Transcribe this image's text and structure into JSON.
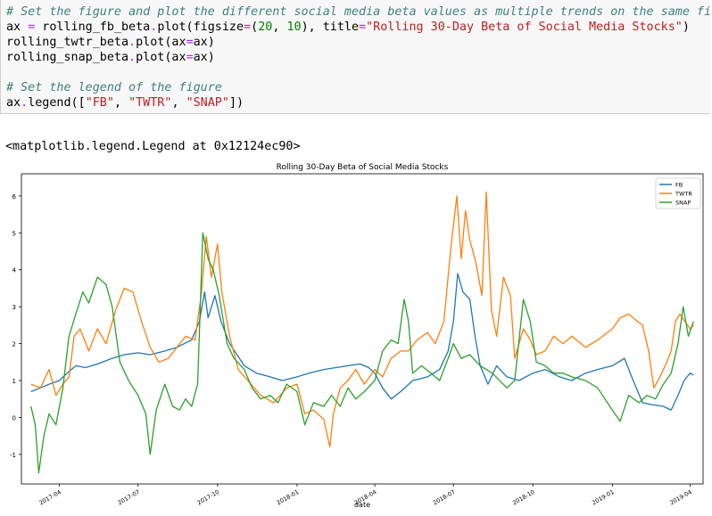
{
  "code_cell": {
    "line1": "# Set the figure and plot the different social media beta values as multiple trends on the same figur",
    "line2": {
      "a": "ax ",
      "b": "=",
      "c": " rolling_fb_beta",
      "d": ".",
      "e": "plot(figsize",
      "f": "=",
      "g": "(",
      "h": "20",
      "i": ", ",
      "j": "10",
      "k": "), title",
      "l": "=",
      "m": "\"Rolling 30-Day Beta of Social Media Stocks\"",
      "n": ")"
    },
    "line3": {
      "a": "rolling_twtr_beta",
      "b": ".",
      "c": "plot(ax",
      "d": "=",
      "e": "ax)"
    },
    "line4": {
      "a": "rolling_snap_beta",
      "b": ".",
      "c": "plot(ax",
      "d": "=",
      "e": "ax)"
    },
    "line6": "# Set the legend of the figure",
    "line7": {
      "a": "ax",
      "b": ".",
      "c": "legend([",
      "d": "\"FB\"",
      "e": ", ",
      "f": "\"TWTR\"",
      "g": ", ",
      "h": "\"SNAP\"",
      "i": "])"
    }
  },
  "output_text": "<matplotlib.legend.Legend at 0x12124ec90>",
  "chart_data": {
    "type": "line",
    "title": "Rolling 30-Day Beta of Social Media Stocks",
    "xlabel": "date",
    "ylabel": "",
    "ylim": [
      -1.8,
      6.6
    ],
    "yticks": [
      -1,
      0,
      1,
      2,
      3,
      4,
      5,
      6
    ],
    "xlim": [
      "2017-02-16",
      "2019-04-16"
    ],
    "xticks": [
      {
        "date": "2017-04-01",
        "label": "2017-04"
      },
      {
        "date": "2017-07-01",
        "label": "2017-07"
      },
      {
        "date": "2017-10-01",
        "label": "2017-10"
      },
      {
        "date": "2018-01-01",
        "label": "2018-01"
      },
      {
        "date": "2018-04-01",
        "label": "2018-04"
      },
      {
        "date": "2018-07-01",
        "label": "2018-07"
      },
      {
        "date": "2018-10-01",
        "label": "2018-10"
      },
      {
        "date": "2019-01-01",
        "label": "2019-01"
      },
      {
        "date": "2019-04-01",
        "label": "2019-04"
      }
    ],
    "legend": "top-right",
    "grid": false,
    "series": [
      {
        "name": "FB",
        "color": "#1f77b4",
        "points": [
          [
            "2017-02-27",
            0.7
          ],
          [
            "2017-03-10",
            0.8
          ],
          [
            "2017-03-20",
            0.9
          ],
          [
            "2017-04-01",
            1.0
          ],
          [
            "2017-04-10",
            1.2
          ],
          [
            "2017-04-20",
            1.4
          ],
          [
            "2017-05-01",
            1.35
          ],
          [
            "2017-05-15",
            1.45
          ],
          [
            "2017-06-01",
            1.6
          ],
          [
            "2017-06-15",
            1.7
          ],
          [
            "2017-07-01",
            1.75
          ],
          [
            "2017-07-15",
            1.7
          ],
          [
            "2017-08-01",
            1.8
          ],
          [
            "2017-08-15",
            1.9
          ],
          [
            "2017-09-01",
            2.1
          ],
          [
            "2017-09-10",
            2.6
          ],
          [
            "2017-09-16",
            3.4
          ],
          [
            "2017-09-20",
            2.7
          ],
          [
            "2017-09-28",
            3.3
          ],
          [
            "2017-10-05",
            2.6
          ],
          [
            "2017-10-15",
            2.0
          ],
          [
            "2017-11-01",
            1.4
          ],
          [
            "2017-11-15",
            1.2
          ],
          [
            "2017-12-01",
            1.1
          ],
          [
            "2017-12-15",
            1.0
          ],
          [
            "2018-01-01",
            1.1
          ],
          [
            "2018-01-15",
            1.2
          ],
          [
            "2018-02-01",
            1.3
          ],
          [
            "2018-02-15",
            1.35
          ],
          [
            "2018-03-01",
            1.4
          ],
          [
            "2018-03-15",
            1.45
          ],
          [
            "2018-03-25",
            1.35
          ],
          [
            "2018-04-01",
            1.2
          ],
          [
            "2018-04-10",
            0.8
          ],
          [
            "2018-04-20",
            0.5
          ],
          [
            "2018-05-01",
            0.7
          ],
          [
            "2018-05-15",
            1.0
          ],
          [
            "2018-06-01",
            1.1
          ],
          [
            "2018-06-15",
            1.3
          ],
          [
            "2018-06-25",
            1.8
          ],
          [
            "2018-07-01",
            2.6
          ],
          [
            "2018-07-06",
            3.9
          ],
          [
            "2018-07-12",
            3.4
          ],
          [
            "2018-07-20",
            3.2
          ],
          [
            "2018-07-26",
            2.2
          ],
          [
            "2018-08-01",
            1.4
          ],
          [
            "2018-08-10",
            0.9
          ],
          [
            "2018-08-20",
            1.4
          ],
          [
            "2018-09-01",
            1.1
          ],
          [
            "2018-09-15",
            1.0
          ],
          [
            "2018-10-01",
            1.2
          ],
          [
            "2018-10-15",
            1.3
          ],
          [
            "2018-11-01",
            1.1
          ],
          [
            "2018-11-15",
            1.0
          ],
          [
            "2018-12-01",
            1.2
          ],
          [
            "2018-12-15",
            1.3
          ],
          [
            "2019-01-01",
            1.4
          ],
          [
            "2019-01-15",
            1.6
          ],
          [
            "2019-01-25",
            1.0
          ],
          [
            "2019-02-05",
            0.4
          ],
          [
            "2019-02-15",
            0.35
          ],
          [
            "2019-03-01",
            0.3
          ],
          [
            "2019-03-10",
            0.2
          ],
          [
            "2019-03-18",
            0.6
          ],
          [
            "2019-03-25",
            1.0
          ],
          [
            "2019-04-01",
            1.2
          ],
          [
            "2019-04-05",
            1.15
          ]
        ]
      },
      {
        "name": "TWTR",
        "color": "#ff7f0e",
        "points": [
          [
            "2017-02-27",
            0.9
          ],
          [
            "2017-03-10",
            0.8
          ],
          [
            "2017-03-20",
            1.3
          ],
          [
            "2017-03-28",
            0.6
          ],
          [
            "2017-04-05",
            0.9
          ],
          [
            "2017-04-12",
            1.1
          ],
          [
            "2017-04-18",
            2.2
          ],
          [
            "2017-04-25",
            2.4
          ],
          [
            "2017-05-05",
            1.8
          ],
          [
            "2017-05-15",
            2.4
          ],
          [
            "2017-05-25",
            2.0
          ],
          [
            "2017-06-05",
            2.9
          ],
          [
            "2017-06-15",
            3.5
          ],
          [
            "2017-06-25",
            3.4
          ],
          [
            "2017-07-05",
            2.6
          ],
          [
            "2017-07-15",
            1.9
          ],
          [
            "2017-07-25",
            1.5
          ],
          [
            "2017-08-05",
            1.6
          ],
          [
            "2017-08-15",
            1.9
          ],
          [
            "2017-08-25",
            2.2
          ],
          [
            "2017-09-05",
            2.1
          ],
          [
            "2017-09-12",
            3.3
          ],
          [
            "2017-09-18",
            4.9
          ],
          [
            "2017-09-24",
            3.8
          ],
          [
            "2017-10-01",
            4.7
          ],
          [
            "2017-10-06",
            3.4
          ],
          [
            "2017-10-15",
            2.2
          ],
          [
            "2017-10-25",
            1.3
          ],
          [
            "2017-11-05",
            1.0
          ],
          [
            "2017-11-20",
            0.6
          ],
          [
            "2017-12-05",
            0.4
          ],
          [
            "2017-12-20",
            0.8
          ],
          [
            "2018-01-01",
            0.9
          ],
          [
            "2018-01-10",
            0.1
          ],
          [
            "2018-01-20",
            0.2
          ],
          [
            "2018-02-01",
            -0.05
          ],
          [
            "2018-02-08",
            -0.8
          ],
          [
            "2018-02-12",
            0.1
          ],
          [
            "2018-02-20",
            0.8
          ],
          [
            "2018-03-01",
            1.0
          ],
          [
            "2018-03-10",
            1.3
          ],
          [
            "2018-03-20",
            0.9
          ],
          [
            "2018-04-01",
            1.3
          ],
          [
            "2018-04-10",
            1.1
          ],
          [
            "2018-04-20",
            1.6
          ],
          [
            "2018-05-01",
            1.8
          ],
          [
            "2018-05-10",
            1.8
          ],
          [
            "2018-05-20",
            2.1
          ],
          [
            "2018-06-01",
            2.3
          ],
          [
            "2018-06-10",
            2.0
          ],
          [
            "2018-06-20",
            2.6
          ],
          [
            "2018-06-28",
            4.6
          ],
          [
            "2018-07-05",
            6.0
          ],
          [
            "2018-07-10",
            4.3
          ],
          [
            "2018-07-15",
            5.6
          ],
          [
            "2018-07-20",
            4.8
          ],
          [
            "2018-07-27",
            4.2
          ],
          [
            "2018-08-03",
            3.3
          ],
          [
            "2018-08-08",
            6.1
          ],
          [
            "2018-08-14",
            2.9
          ],
          [
            "2018-08-20",
            2.2
          ],
          [
            "2018-08-28",
            3.8
          ],
          [
            "2018-09-05",
            3.3
          ],
          [
            "2018-09-10",
            1.6
          ],
          [
            "2018-09-20",
            2.4
          ],
          [
            "2018-09-28",
            2.1
          ],
          [
            "2018-10-05",
            1.7
          ],
          [
            "2018-10-15",
            1.8
          ],
          [
            "2018-10-25",
            2.2
          ],
          [
            "2018-11-05",
            2.0
          ],
          [
            "2018-11-15",
            2.2
          ],
          [
            "2018-12-01",
            1.9
          ],
          [
            "2018-12-15",
            2.1
          ],
          [
            "2019-01-01",
            2.4
          ],
          [
            "2019-01-10",
            2.7
          ],
          [
            "2019-01-20",
            2.8
          ],
          [
            "2019-01-30",
            2.6
          ],
          [
            "2019-02-05",
            2.5
          ],
          [
            "2019-02-12",
            1.8
          ],
          [
            "2019-02-18",
            0.8
          ],
          [
            "2019-02-25",
            1.1
          ],
          [
            "2019-03-05",
            1.5
          ],
          [
            "2019-03-10",
            1.8
          ],
          [
            "2019-03-15",
            2.6
          ],
          [
            "2019-03-20",
            2.8
          ],
          [
            "2019-03-26",
            2.6
          ],
          [
            "2019-04-01",
            2.4
          ],
          [
            "2019-04-05",
            2.5
          ]
        ]
      },
      {
        "name": "SNAP",
        "color": "#2ca02c",
        "points": [
          [
            "2017-02-27",
            0.3
          ],
          [
            "2017-03-04",
            -0.2
          ],
          [
            "2017-03-08",
            -1.5
          ],
          [
            "2017-03-14",
            -0.5
          ],
          [
            "2017-03-20",
            0.1
          ],
          [
            "2017-03-28",
            -0.2
          ],
          [
            "2017-04-05",
            0.8
          ],
          [
            "2017-04-12",
            2.2
          ],
          [
            "2017-04-20",
            2.8
          ],
          [
            "2017-04-28",
            3.4
          ],
          [
            "2017-05-05",
            3.1
          ],
          [
            "2017-05-15",
            3.8
          ],
          [
            "2017-05-25",
            3.6
          ],
          [
            "2017-06-01",
            3.0
          ],
          [
            "2017-06-10",
            1.5
          ],
          [
            "2017-06-20",
            1.0
          ],
          [
            "2017-07-01",
            0.6
          ],
          [
            "2017-07-10",
            0.1
          ],
          [
            "2017-07-15",
            -1.0
          ],
          [
            "2017-07-22",
            0.2
          ],
          [
            "2017-08-01",
            0.9
          ],
          [
            "2017-08-10",
            0.3
          ],
          [
            "2017-08-18",
            0.2
          ],
          [
            "2017-08-25",
            0.5
          ],
          [
            "2017-09-01",
            0.3
          ],
          [
            "2017-09-08",
            0.9
          ],
          [
            "2017-09-14",
            5.0
          ],
          [
            "2017-09-20",
            4.3
          ],
          [
            "2017-09-26",
            4.0
          ],
          [
            "2017-10-03",
            3.3
          ],
          [
            "2017-10-12",
            2.0
          ],
          [
            "2017-10-20",
            1.6
          ],
          [
            "2017-11-01",
            1.3
          ],
          [
            "2017-11-10",
            0.8
          ],
          [
            "2017-11-20",
            0.5
          ],
          [
            "2017-12-01",
            0.6
          ],
          [
            "2017-12-10",
            0.4
          ],
          [
            "2017-12-20",
            0.9
          ],
          [
            "2018-01-01",
            0.7
          ],
          [
            "2018-01-10",
            -0.2
          ],
          [
            "2018-01-20",
            0.4
          ],
          [
            "2018-02-01",
            0.3
          ],
          [
            "2018-02-10",
            0.6
          ],
          [
            "2018-02-20",
            0.3
          ],
          [
            "2018-03-01",
            0.8
          ],
          [
            "2018-03-10",
            0.5
          ],
          [
            "2018-03-20",
            0.7
          ],
          [
            "2018-04-01",
            1.0
          ],
          [
            "2018-04-10",
            1.8
          ],
          [
            "2018-04-20",
            2.1
          ],
          [
            "2018-04-28",
            2.0
          ],
          [
            "2018-05-05",
            3.2
          ],
          [
            "2018-05-10",
            2.6
          ],
          [
            "2018-05-15",
            1.2
          ],
          [
            "2018-05-25",
            1.4
          ],
          [
            "2018-06-05",
            1.2
          ],
          [
            "2018-06-15",
            1.0
          ],
          [
            "2018-06-25",
            1.6
          ],
          [
            "2018-07-01",
            2.0
          ],
          [
            "2018-07-10",
            1.6
          ],
          [
            "2018-07-20",
            1.7
          ],
          [
            "2018-08-01",
            1.4
          ],
          [
            "2018-08-15",
            1.2
          ],
          [
            "2018-09-01",
            0.8
          ],
          [
            "2018-09-10",
            1.0
          ],
          [
            "2018-09-20",
            3.2
          ],
          [
            "2018-09-28",
            2.6
          ],
          [
            "2018-10-05",
            1.5
          ],
          [
            "2018-10-15",
            1.4
          ],
          [
            "2018-10-25",
            1.2
          ],
          [
            "2018-11-05",
            1.2
          ],
          [
            "2018-11-15",
            1.1
          ],
          [
            "2018-12-01",
            1.0
          ],
          [
            "2018-12-15",
            0.8
          ],
          [
            "2019-01-01",
            0.2
          ],
          [
            "2019-01-10",
            -0.1
          ],
          [
            "2019-01-20",
            0.6
          ],
          [
            "2019-02-01",
            0.4
          ],
          [
            "2019-02-10",
            0.6
          ],
          [
            "2019-02-20",
            0.5
          ],
          [
            "2019-03-01",
            0.9
          ],
          [
            "2019-03-10",
            1.2
          ],
          [
            "2019-03-18",
            2.0
          ],
          [
            "2019-03-24",
            3.0
          ],
          [
            "2019-03-30",
            2.2
          ],
          [
            "2019-04-05",
            2.6
          ]
        ]
      }
    ]
  }
}
